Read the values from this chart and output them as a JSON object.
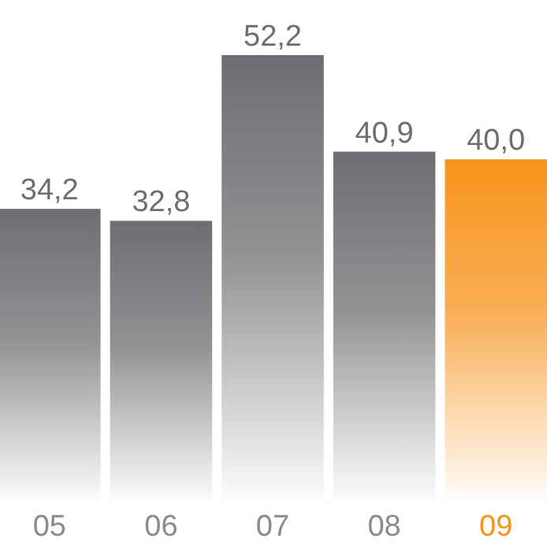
{
  "chart_data": {
    "type": "bar",
    "categories": [
      "05",
      "06",
      "07",
      "08",
      "09"
    ],
    "values": [
      34.2,
      32.8,
      52.2,
      40.9,
      40.0
    ],
    "value_labels": [
      "34,2",
      "32,8",
      "52,2",
      "40,9",
      "40,0"
    ],
    "colors": [
      "#6d6e71",
      "#6d6e71",
      "#6d6e71",
      "#6d6e71",
      "#f7941d"
    ]
  }
}
